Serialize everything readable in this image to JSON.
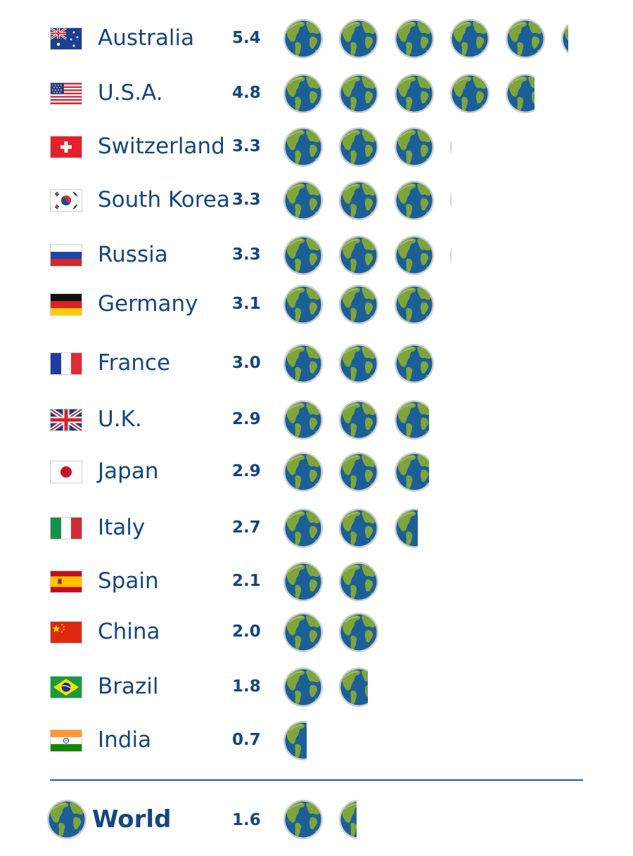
{
  "chart_data": {
    "type": "bar",
    "categories": [
      "Australia",
      "U.S.A.",
      "Switzerland",
      "South Korea",
      "Russia",
      "Germany",
      "France",
      "U.K.",
      "Japan",
      "Italy",
      "Spain",
      "China",
      "Brazil",
      "India"
    ],
    "values": [
      5.4,
      4.8,
      3.3,
      3.3,
      3.3,
      3.1,
      3.0,
      2.9,
      2.9,
      2.7,
      2.1,
      2.0,
      1.8,
      0.7
    ],
    "value_labels": [
      "5.4",
      "4.8",
      "3.3",
      "3.3",
      "3.3",
      "3.1",
      "3.0",
      "2.9",
      "2.9",
      "2.7",
      "2.1",
      "2.0",
      "1.8",
      "0.7"
    ],
    "total": {
      "label": "World",
      "value": 1.6,
      "value_label": "1.6"
    },
    "title": "",
    "xlabel": "",
    "ylabel": "",
    "mark": "earth-globe-icon",
    "legend": "none",
    "grid": false
  },
  "colors": {
    "text": "#15467e",
    "ocean": "#1b5f99",
    "land": "#7fa43a",
    "rim": "#c9cdd1",
    "divider": "#2a5a8f"
  },
  "flag_icons": [
    "australia-flag-icon",
    "usa-flag-icon",
    "switzerland-flag-icon",
    "south-korea-flag-icon",
    "russia-flag-icon",
    "germany-flag-icon",
    "france-flag-icon",
    "uk-flag-icon",
    "japan-flag-icon",
    "italy-flag-icon",
    "spain-flag-icon",
    "china-flag-icon",
    "brazil-flag-icon",
    "india-flag-icon"
  ]
}
